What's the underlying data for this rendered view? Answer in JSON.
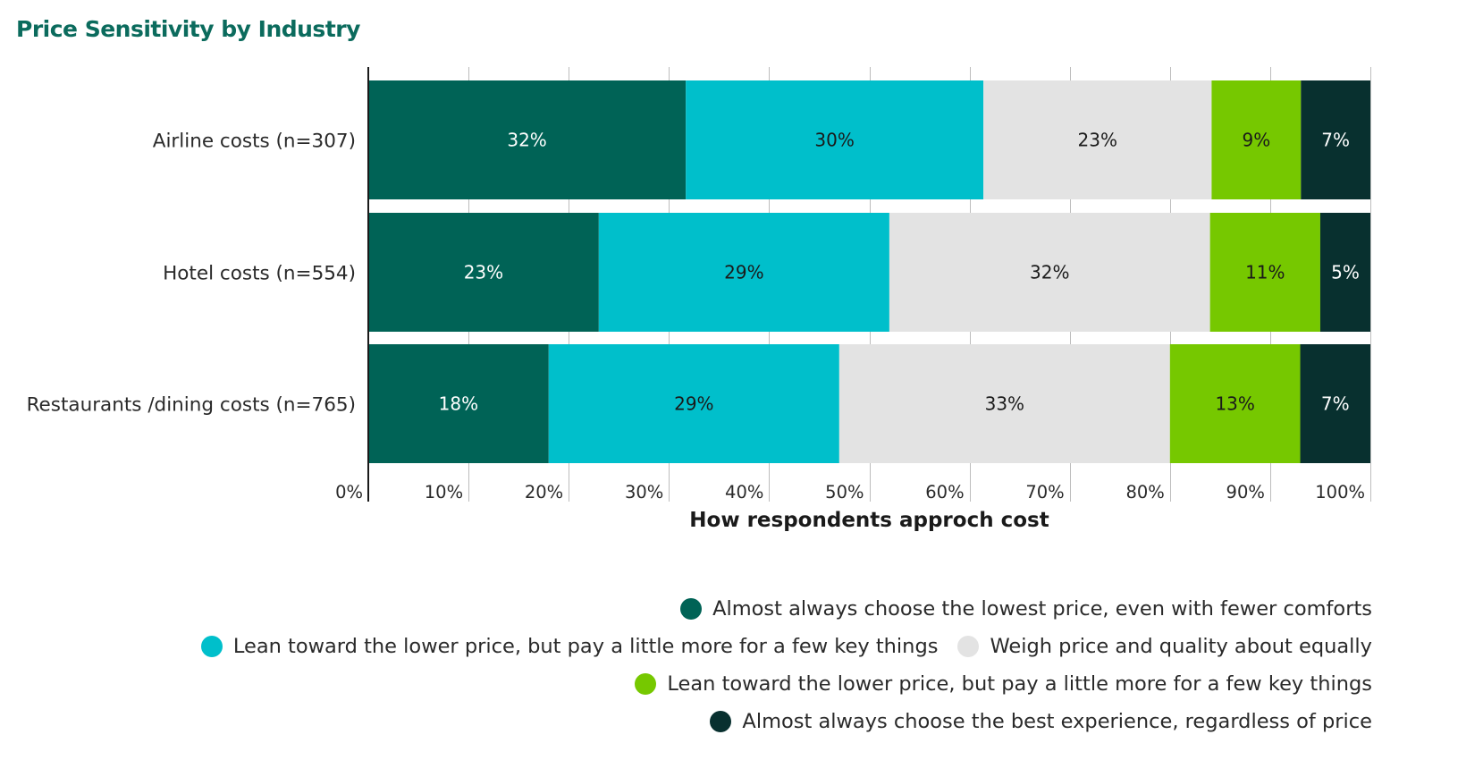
{
  "chart_data": {
    "type": "bar",
    "orientation": "horizontal",
    "stacked": true,
    "title": "Price Sensitivity by Industry",
    "xlabel": "How respondents approch cost",
    "ylabel": "",
    "xlim": [
      0,
      100
    ],
    "x_ticks": [
      "0%",
      "10%",
      "20%",
      "30%",
      "40%",
      "50%",
      "60%",
      "70%",
      "80%",
      "90%",
      "100%"
    ],
    "categories": [
      "Airline costs (n=307)",
      "Hotel costs (n=554)",
      "Restaurants /dining costs (n=765)"
    ],
    "series": [
      {
        "name": "Almost always choose the lowest price, even with fewer comforts",
        "color": "#006356",
        "label_color": "#ffffff",
        "values": [
          32,
          23,
          18
        ]
      },
      {
        "name": "Lean toward the lower price, but pay a little more for a few key things",
        "color": "#00bfcb",
        "label_color": "#1a1a1a",
        "values": [
          30,
          29,
          29
        ]
      },
      {
        "name": "Weigh price and quality about equally",
        "color": "#e3e3e3",
        "label_color": "#1a1a1a",
        "values": [
          23,
          32,
          33
        ]
      },
      {
        "name": "Lean toward the lower price, but pay a little more for a few key things",
        "color": "#76c800",
        "label_color": "#1a1a1a",
        "values": [
          9,
          11,
          13
        ]
      },
      {
        "name": "Almost always choose the best experience, regardless of price",
        "color": "#08302f",
        "label_color": "#ffffff",
        "values": [
          7,
          5,
          7
        ]
      }
    ],
    "data_labels": [
      [
        "32%",
        "30%",
        "23%",
        "9%",
        "7%"
      ],
      [
        "23%",
        "29%",
        "32%",
        "11%",
        "5%"
      ],
      [
        "18%",
        "29%",
        "33%",
        "13%",
        "7%"
      ]
    ],
    "grid": true,
    "legend_position": "bottom-right"
  }
}
